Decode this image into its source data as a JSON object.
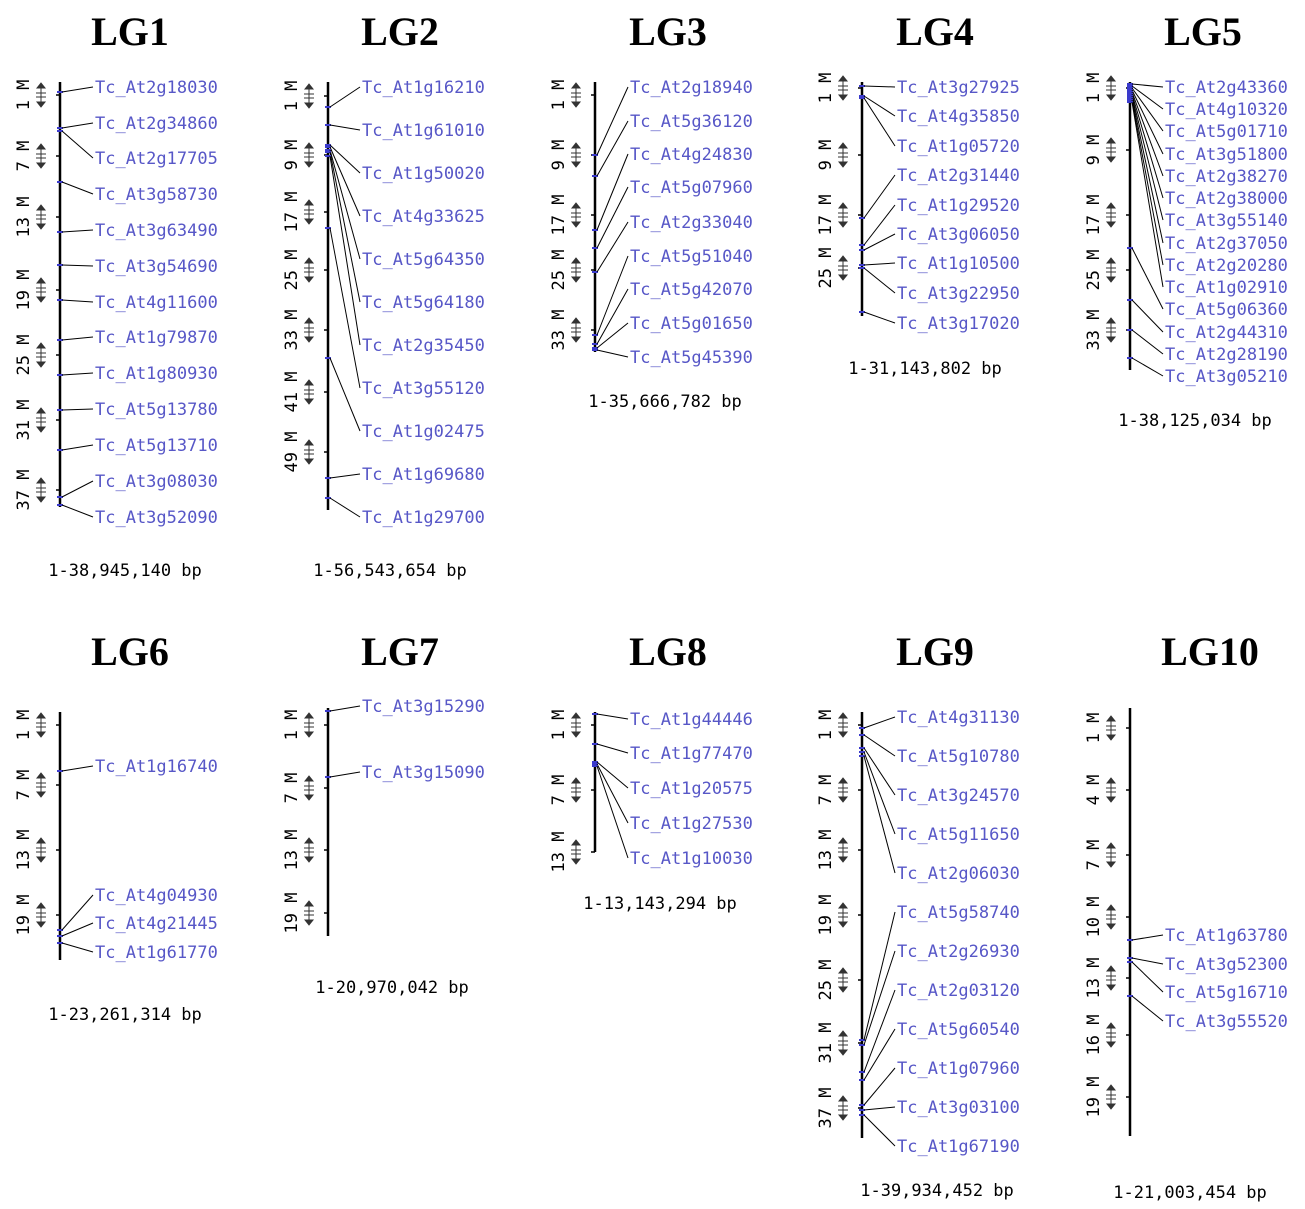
{
  "colors": {
    "gene_text": "#5757c7",
    "marker": "#3a3acc",
    "axis": "#000000"
  },
  "linkage_groups": [
    {
      "name": "LG1",
      "range": "1-38,945,140 bp",
      "ticks": [
        "1 M",
        "7 M",
        "13 M",
        "19 M",
        "25 M",
        "31 M",
        "37 M"
      ],
      "genes": [
        "Tc_At2g18030",
        "Tc_At2g34860",
        "Tc_At2g17705",
        "Tc_At3g58730",
        "Tc_At3g63490",
        "Tc_At3g54690",
        "Tc_At4g11600",
        "Tc_At1g79870",
        "Tc_At1g80930",
        "Tc_At5g13780",
        "Tc_At5g13710",
        "Tc_At3g08030",
        "Tc_At3g52090"
      ]
    },
    {
      "name": "LG2",
      "range": "1-56,543,654 bp",
      "ticks": [
        "1 M",
        "9 M",
        "17 M",
        "25 M",
        "33 M",
        "41 M",
        "49 M"
      ],
      "genes": [
        "Tc_At1g16210",
        "Tc_At1g61010",
        "Tc_At1g50020",
        "Tc_At4g33625",
        "Tc_At5g64350",
        "Tc_At5g64180",
        "Tc_At2g35450",
        "Tc_At3g55120",
        "Tc_At1g02475",
        "Tc_At1g69680",
        "Tc_At1g29700"
      ]
    },
    {
      "name": "LG3",
      "range": "1-35,666,782 bp",
      "ticks": [
        "1 M",
        "9 M",
        "17 M",
        "25 M",
        "33 M"
      ],
      "genes": [
        "Tc_At2g18940",
        "Tc_At5g36120",
        "Tc_At4g24830",
        "Tc_At5g07960",
        "Tc_At2g33040",
        "Tc_At5g51040",
        "Tc_At5g42070",
        "Tc_At5g01650",
        "Tc_At5g45390"
      ]
    },
    {
      "name": "LG4",
      "range": "1-31,143,802 bp",
      "ticks": [
        "1 M",
        "9 M",
        "17 M",
        "25 M"
      ],
      "genes": [
        "Tc_At3g27925",
        "Tc_At4g35850",
        "Tc_At1g05720",
        "Tc_At2g31440",
        "Tc_At1g29520",
        "Tc_At3g06050",
        "Tc_At1g10500",
        "Tc_At3g22950",
        "Tc_At3g17020"
      ]
    },
    {
      "name": "LG5",
      "range": "1-38,125,034 bp",
      "ticks": [
        "1 M",
        "9 M",
        "17 M",
        "25 M",
        "33 M"
      ],
      "genes": [
        "Tc_At2g43360",
        "Tc_At4g10320",
        "Tc_At5g01710",
        "Tc_At3g51800",
        "Tc_At2g38270",
        "Tc_At2g38000",
        "Tc_At3g55140",
        "Tc_At2g37050",
        "Tc_At2g20280",
        "Tc_At1g02910",
        "Tc_At5g06360",
        "Tc_At2g44310",
        "Tc_At2g28190",
        "Tc_At3g05210"
      ]
    },
    {
      "name": "LG6",
      "range": "1-23,261,314 bp",
      "ticks": [
        "1 M",
        "7 M",
        "13 M",
        "19 M"
      ],
      "genes": [
        "Tc_At1g16740",
        "Tc_At4g04930",
        "Tc_At4g21445",
        "Tc_At1g61770"
      ]
    },
    {
      "name": "LG7",
      "range": "1-20,970,042 bp",
      "ticks": [
        "1 M",
        "7 M",
        "13 M",
        "19 M"
      ],
      "genes": [
        "Tc_At3g15290",
        "Tc_At3g15090"
      ]
    },
    {
      "name": "LG8",
      "range": "1-13,143,294 bp",
      "ticks": [
        "1 M",
        "7 M",
        "13 M"
      ],
      "genes": [
        "Tc_At1g44446",
        "Tc_At1g77470",
        "Tc_At1g20575",
        "Tc_At1g27530",
        "Tc_At1g10030"
      ]
    },
    {
      "name": "LG9",
      "range": "1-39,934,452 bp",
      "ticks": [
        "1 M",
        "7 M",
        "13 M",
        "19 M",
        "25 M",
        "31 M",
        "37 M"
      ],
      "genes": [
        "Tc_At4g31130",
        "Tc_At5g10780",
        "Tc_At3g24570",
        "Tc_At5g11650",
        "Tc_At2g06030",
        "Tc_At5g58740",
        "Tc_At2g26930",
        "Tc_At2g03120",
        "Tc_At5g60540",
        "Tc_At1g07960",
        "Tc_At3g03100",
        "Tc_At1g67190"
      ]
    },
    {
      "name": "LG10",
      "range": "1-21,003,454 bp",
      "ticks": [
        "1 M",
        "4 M",
        "7 M",
        "10 M",
        "13 M",
        "16 M",
        "19 M"
      ],
      "genes": [
        "Tc_At1g63780",
        "Tc_At3g52300",
        "Tc_At5g16710",
        "Tc_At3g55520"
      ]
    }
  ]
}
